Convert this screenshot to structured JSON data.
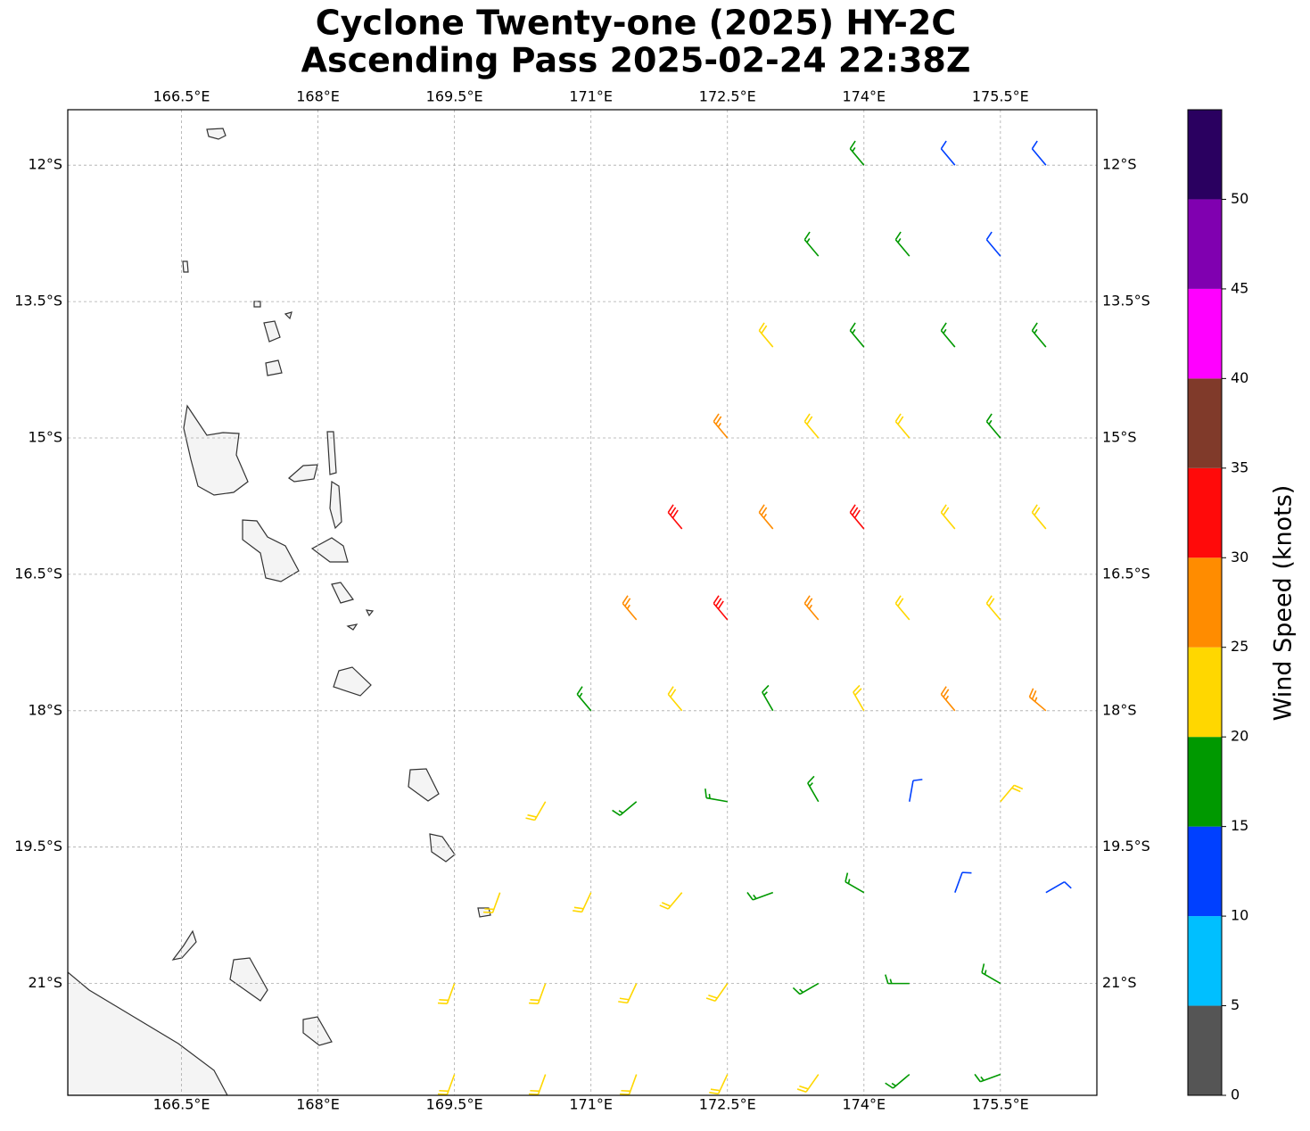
{
  "chart_data": {
    "type": "barbs",
    "title": "Cyclone Twenty-one (2025) HY-2C",
    "subtitle": "Ascending Pass 2025-02-24 22:38Z",
    "xlim": [
      165.25,
      176.56
    ],
    "ylim": [
      -22.23,
      -11.39
    ],
    "xticks": [
      {
        "value": 166.5,
        "label": "166.5°E"
      },
      {
        "value": 168,
        "label": "168°E"
      },
      {
        "value": 169.5,
        "label": "169.5°E"
      },
      {
        "value": 171,
        "label": "171°E"
      },
      {
        "value": 172.5,
        "label": "172.5°E"
      },
      {
        "value": 174,
        "label": "174°E"
      },
      {
        "value": 175.5,
        "label": "175.5°E"
      }
    ],
    "yticks": [
      {
        "value": -12,
        "label": "12°S"
      },
      {
        "value": -13.5,
        "label": "13.5°S"
      },
      {
        "value": -15,
        "label": "15°S"
      },
      {
        "value": -16.5,
        "label": "16.5°S"
      },
      {
        "value": -18,
        "label": "18°S"
      },
      {
        "value": -19.5,
        "label": "19.5°S"
      },
      {
        "value": -21,
        "label": "21°S"
      }
    ],
    "grid": true,
    "colorbar": {
      "label": "Wind Speed (knots)",
      "bounds": [
        0,
        5,
        10,
        15,
        20,
        25,
        30,
        35,
        40,
        45,
        50,
        55
      ],
      "colors": [
        "#555555",
        "#00bfff",
        "#0040ff",
        "#009900",
        "#ffd700",
        "#ff8c00",
        "#ff0a0a",
        "#803a2a",
        "#ff00ff",
        "#8000b0",
        "#2a0060"
      ],
      "ticks": [
        0,
        5,
        10,
        15,
        20,
        25,
        30,
        35,
        40,
        45,
        50
      ]
    },
    "barbs": {
      "lon": [
        174,
        175,
        176,
        173.5,
        174.5,
        175.5,
        173,
        174,
        175,
        176,
        172.5,
        173.5,
        174.5,
        175.5,
        172,
        173,
        174,
        175,
        176,
        171.5,
        172.5,
        173.5,
        174.5,
        175.5,
        171,
        172,
        173,
        174,
        175,
        176,
        170.5,
        171.5,
        172.5,
        173.5,
        174.5,
        175.5,
        170,
        171,
        172,
        173,
        174,
        175,
        176,
        169.5,
        170.5,
        171.5,
        172.5,
        173.5,
        174.5,
        175.5,
        169.5,
        170.5,
        171.5,
        172.5,
        173.5,
        174.5,
        175.5
      ],
      "lat": [
        -12,
        -12,
        -12,
        -13,
        -13,
        -13,
        -14,
        -14,
        -14,
        -14,
        -15,
        -15,
        -15,
        -15,
        -16,
        -16,
        -16,
        -16,
        -16,
        -17,
        -17,
        -17,
        -17,
        -17,
        -18,
        -18,
        -18,
        -18,
        -18,
        -18,
        -19,
        -19,
        -19,
        -19,
        -19,
        -19,
        -20,
        -20,
        -20,
        -20,
        -20,
        -20,
        -20,
        -21,
        -21,
        -21,
        -21,
        -21,
        -21,
        -21,
        -22,
        -22,
        -22,
        -22,
        -22,
        -22,
        -22
      ],
      "speed": [
        17,
        13,
        12,
        18,
        17,
        13,
        22,
        18,
        17,
        17,
        27,
        23,
        22,
        18,
        32,
        28,
        32,
        23,
        22,
        27,
        32,
        28,
        24,
        23,
        17,
        22,
        18,
        23,
        26,
        27,
        22,
        17,
        18,
        17,
        12,
        22,
        22,
        22,
        22,
        18,
        17,
        12,
        13,
        22,
        22,
        23,
        22,
        18,
        17,
        17,
        22,
        22,
        22,
        22,
        22,
        18,
        17
      ],
      "direction": [
        320,
        320,
        320,
        320,
        320,
        320,
        320,
        320,
        320,
        320,
        320,
        320,
        320,
        320,
        320,
        320,
        320,
        320,
        320,
        320,
        320,
        320,
        320,
        320,
        320,
        320,
        330,
        330,
        320,
        310,
        210,
        230,
        280,
        330,
        10,
        40,
        200,
        205,
        220,
        250,
        300,
        20,
        60,
        200,
        200,
        205,
        215,
        240,
        270,
        300,
        200,
        200,
        200,
        205,
        215,
        230,
        250
      ]
    }
  }
}
